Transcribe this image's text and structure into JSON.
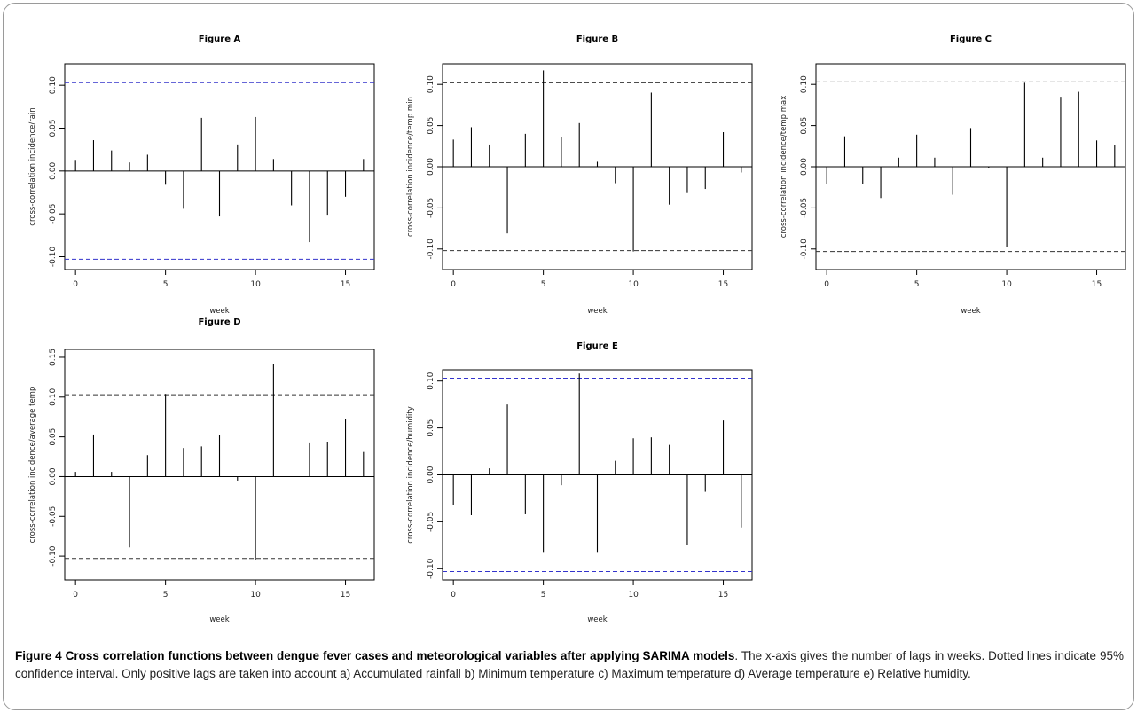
{
  "chart_data": [
    {
      "type": "bar",
      "id": "A",
      "title": "Figure A",
      "xlabel": "week",
      "ylabel": "cross-correlation incidence/rain",
      "x": [
        0,
        1,
        2,
        3,
        4,
        5,
        6,
        7,
        8,
        9,
        10,
        11,
        12,
        13,
        14,
        15,
        16
      ],
      "values": [
        0.013,
        0.036,
        0.024,
        0.01,
        0.019,
        -0.016,
        -0.044,
        0.062,
        -0.053,
        0.031,
        0.063,
        0.014,
        -0.04,
        -0.083,
        -0.052,
        -0.03,
        0.014
      ],
      "ci": [
        0.103,
        -0.103
      ],
      "ci_color": "#3333cc",
      "ylim": [
        -0.115,
        0.125
      ],
      "xlim": [
        -0.6,
        16.6
      ],
      "yticks": [
        0.1,
        0.05,
        0.0,
        -0.05,
        -0.1
      ],
      "ytick_labels": [
        "0.10",
        "0.05",
        "0.00",
        "-0.05",
        "-0.10"
      ],
      "xticks": [
        0,
        5,
        10,
        15
      ],
      "xtick_labels": [
        "0",
        "5",
        "10",
        "15"
      ]
    },
    {
      "type": "bar",
      "id": "B",
      "title": "Figure B",
      "xlabel": "week",
      "ylabel": "cross-correlation incidence/temp min",
      "x": [
        0,
        1,
        2,
        3,
        4,
        5,
        6,
        7,
        8,
        9,
        10,
        11,
        12,
        13,
        14,
        15,
        16
      ],
      "values": [
        0.033,
        0.048,
        0.027,
        -0.081,
        0.04,
        0.117,
        0.036,
        0.053,
        0.006,
        -0.02,
        -0.103,
        0.09,
        -0.046,
        -0.032,
        -0.027,
        0.042,
        -0.007
      ],
      "ci": [
        0.102,
        -0.102
      ],
      "ci_color": "#333333",
      "ylim": [
        -0.125,
        0.125
      ],
      "xlim": [
        -0.6,
        16.6
      ],
      "yticks": [
        0.1,
        0.05,
        0.0,
        -0.05,
        -0.1
      ],
      "ytick_labels": [
        "0.10",
        "0.05",
        "0.00",
        "-0.05",
        "-0.10"
      ],
      "xticks": [
        0,
        5,
        10,
        15
      ],
      "xtick_labels": [
        "0",
        "5",
        "10",
        "15"
      ]
    },
    {
      "type": "bar",
      "id": "C",
      "title": "Figure C",
      "xlabel": "week",
      "ylabel": "cross-correlation incidence/temp max",
      "x": [
        0,
        1,
        2,
        3,
        4,
        5,
        6,
        7,
        8,
        9,
        10,
        11,
        12,
        13,
        14,
        15,
        16
      ],
      "values": [
        -0.021,
        0.037,
        -0.021,
        -0.038,
        0.011,
        0.039,
        0.011,
        -0.034,
        0.047,
        -0.002,
        -0.097,
        0.102,
        0.011,
        0.085,
        0.091,
        0.032,
        0.026
      ],
      "ci": [
        0.103,
        -0.103
      ],
      "ci_color": "#333333",
      "ylim": [
        -0.125,
        0.125
      ],
      "xlim": [
        -0.6,
        16.6
      ],
      "yticks": [
        0.1,
        0.05,
        0.0,
        -0.05,
        -0.1
      ],
      "ytick_labels": [
        "0.10",
        "0.05",
        "0.00",
        "-0.05",
        "-0.10"
      ],
      "xticks": [
        0,
        5,
        10,
        15
      ],
      "xtick_labels": [
        "0",
        "5",
        "10",
        "15"
      ]
    },
    {
      "type": "bar",
      "id": "D",
      "title": "Figure D",
      "xlabel": "week",
      "ylabel": "cross-correlation incidence/average temp",
      "x": [
        0,
        1,
        2,
        3,
        4,
        5,
        6,
        7,
        8,
        9,
        10,
        11,
        12,
        13,
        14,
        15,
        16
      ],
      "values": [
        0.006,
        0.053,
        0.006,
        -0.089,
        0.027,
        0.104,
        0.036,
        0.038,
        0.052,
        -0.005,
        -0.105,
        0.142,
        0.0,
        0.043,
        0.044,
        0.073,
        0.031
      ],
      "ci": [
        0.103,
        -0.103
      ],
      "ci_color": "#333333",
      "ylim": [
        -0.13,
        0.16
      ],
      "xlim": [
        -0.6,
        16.6
      ],
      "yticks": [
        0.15,
        0.1,
        0.05,
        0.0,
        -0.05,
        -0.1
      ],
      "ytick_labels": [
        "0.15",
        "0.10",
        "0.05",
        "0.00",
        "-0.05",
        "-0.10"
      ],
      "xticks": [
        0,
        5,
        10,
        15
      ],
      "xtick_labels": [
        "0",
        "5",
        "10",
        "15"
      ]
    },
    {
      "type": "bar",
      "id": "E",
      "title": "Figure E",
      "xlabel": "week",
      "ylabel": "cross-correlation incidence/humidity",
      "x": [
        0,
        1,
        2,
        3,
        4,
        5,
        6,
        7,
        8,
        9,
        10,
        11,
        12,
        13,
        14,
        15,
        16
      ],
      "values": [
        -0.032,
        -0.043,
        0.007,
        0.075,
        -0.042,
        -0.083,
        -0.011,
        0.108,
        -0.083,
        0.015,
        0.039,
        0.04,
        0.032,
        -0.075,
        -0.018,
        0.058,
        -0.056
      ],
      "ci": [
        0.103,
        -0.103
      ],
      "ci_color": "#3333cc",
      "ylim": [
        -0.112,
        0.112
      ],
      "xlim": [
        -0.6,
        16.6
      ],
      "yticks": [
        0.1,
        0.05,
        0.0,
        -0.05,
        -0.1
      ],
      "ytick_labels": [
        "0.10",
        "0.05",
        "0.00",
        "-0.05",
        "-0.10"
      ],
      "xticks": [
        0,
        5,
        10,
        15
      ],
      "xtick_labels": [
        "0",
        "5",
        "10",
        "15"
      ]
    }
  ],
  "caption": {
    "label": "Figure 4",
    "bold_text": "Cross correlation functions between dengue fever cases and meteorological variables after applying SARIMA models",
    "text": ". The x-axis gives the number of lags in weeks. Dotted lines indicate 95% confidence interval. Only positive lags are taken into account a) Accumulated rainfall b) Minimum temperature c) Maximum temperature d) Average temperature e) Relative humidity."
  }
}
